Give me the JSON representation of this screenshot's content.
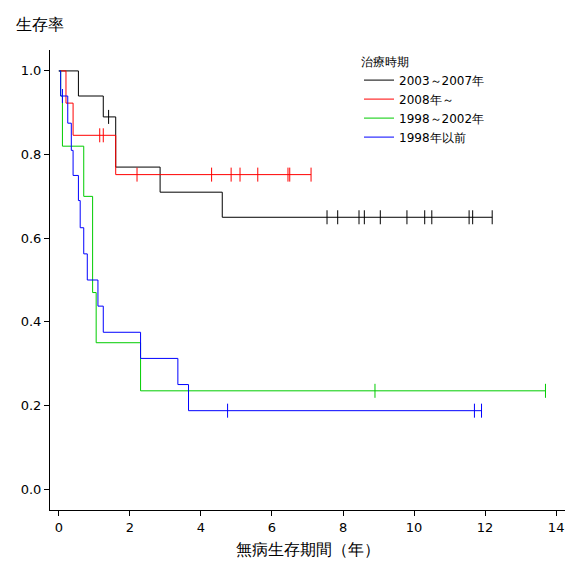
{
  "chart_data": {
    "type": "line",
    "line_style": "step",
    "y_label": "生存率",
    "x_label": "無病生存期間（年）",
    "legend_title": "治療時期",
    "legend": "upper right",
    "grid": false,
    "xlim": [
      -0.25,
      14.25
    ],
    "xticks": [
      0,
      2,
      4,
      6,
      8,
      10,
      12,
      14
    ],
    "ylim": [
      -0.05,
      1.05
    ],
    "yticks": [
      {
        "value": 0,
        "label": "0.0"
      },
      {
        "value": 0.2,
        "label": "0.2"
      },
      {
        "value": 0.4,
        "label": "0.4"
      },
      {
        "value": 0.6,
        "label": "0.6"
      },
      {
        "value": 0.8,
        "label": "0.8"
      },
      {
        "value": 1,
        "label": "1.0"
      }
    ],
    "series": [
      {
        "name": "2003～2007年",
        "color": "#000000",
        "x": [
          0,
          0.55,
          1.25,
          1.6,
          2.85,
          4.6,
          12.2
        ],
        "values": [
          1.0,
          0.94,
          0.89,
          0.77,
          0.71,
          0.65,
          0.65
        ],
        "censored": {
          "x": [
            1.4,
            7.55,
            7.85,
            8.45,
            8.6,
            9.05,
            9.8,
            10.3,
            10.5,
            11.55,
            11.65,
            12.2
          ],
          "values": [
            0.89,
            0.65,
            0.65,
            0.65,
            0.65,
            0.65,
            0.65,
            0.65,
            0.65,
            0.65,
            0.65,
            0.65
          ]
        }
      },
      {
        "name": "2008年～",
        "color": "#ff0000",
        "x": [
          0,
          0.2,
          0.4,
          1.6,
          7.1
        ],
        "values": [
          1.0,
          0.923,
          0.846,
          0.752,
          0.752
        ],
        "censored": {
          "x": [
            1.15,
            1.25,
            2.2,
            4.3,
            4.85,
            5.1,
            5.6,
            6.45,
            6.5,
            7.1
          ],
          "values": [
            0.846,
            0.846,
            0.752,
            0.752,
            0.752,
            0.752,
            0.752,
            0.752,
            0.752,
            0.752
          ]
        }
      },
      {
        "name": "1998～2002年",
        "color": "#00cc00",
        "x": [
          0,
          0.05,
          0.1,
          0.7,
          0.95,
          1.05,
          2.3,
          13.7
        ],
        "values": [
          1.0,
          0.94,
          0.82,
          0.7,
          0.47,
          0.35,
          0.235,
          0.235
        ],
        "censored": {
          "x": [
            8.9,
            13.7
          ],
          "values": [
            0.235,
            0.235
          ]
        }
      },
      {
        "name": "1998年以前",
        "color": "#0000ff",
        "x": [
          0,
          0.05,
          0.25,
          0.35,
          0.4,
          0.55,
          0.6,
          0.7,
          0.8,
          1.1,
          1.25,
          2.3,
          3.35,
          3.65,
          11.9
        ],
        "values": [
          1.0,
          0.94,
          0.875,
          0.81,
          0.75,
          0.69,
          0.625,
          0.5625,
          0.5,
          0.4375,
          0.375,
          0.3125,
          0.25,
          0.1875,
          0.1875
        ],
        "censored": {
          "x": [
            0.1,
            4.75,
            11.7,
            11.9
          ],
          "values": [
            0.94,
            0.1875,
            0.1875,
            0.1875
          ]
        }
      }
    ]
  }
}
